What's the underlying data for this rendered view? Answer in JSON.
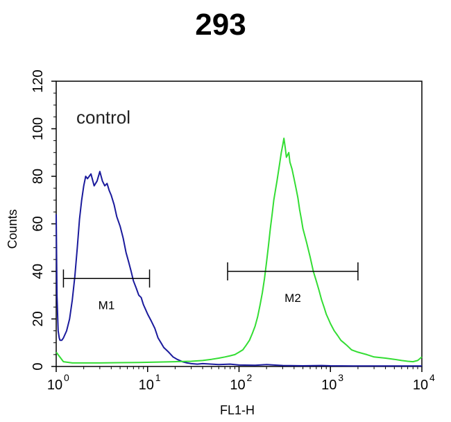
{
  "chart_data": {
    "type": "line",
    "title": "293",
    "xlabel": "FL1-H",
    "ylabel": "Counts",
    "x_scale": "log",
    "xlim": [
      1,
      10000
    ],
    "ylim": [
      0,
      120
    ],
    "x_ticks": [
      {
        "base": "10",
        "exp": "0",
        "value": 1
      },
      {
        "base": "10",
        "exp": "1",
        "value": 10
      },
      {
        "base": "10",
        "exp": "2",
        "value": 100
      },
      {
        "base": "10",
        "exp": "3",
        "value": 1000
      },
      {
        "base": "10",
        "exp": "4",
        "value": 10000
      }
    ],
    "y_ticks": [
      "0",
      "20",
      "40",
      "60",
      "80",
      "100",
      "120"
    ],
    "grid": false,
    "annotation": "control",
    "series": [
      {
        "color": "#1a1a9c",
        "x": [
          1.0,
          1.02,
          1.05,
          1.08,
          1.1,
          1.15,
          1.2,
          1.3,
          1.4,
          1.5,
          1.6,
          1.7,
          1.8,
          1.9,
          2.0,
          2.1,
          2.2,
          2.4,
          2.6,
          2.8,
          3.0,
          3.2,
          3.4,
          3.6,
          3.8,
          4.0,
          4.3,
          4.6,
          5.0,
          5.4,
          5.8,
          6.2,
          6.6,
          7.0,
          7.5,
          8.0,
          8.5,
          9.0,
          9.5,
          10,
          11,
          12,
          13,
          14,
          15,
          17,
          19,
          21,
          24,
          27,
          30,
          35,
          40,
          50,
          60,
          80,
          100,
          150,
          200,
          300,
          500,
          800,
          1000,
          2000,
          5000,
          10000
        ],
        "y": [
          64,
          30,
          15,
          12,
          11,
          11,
          12,
          15,
          20,
          28,
          38,
          50,
          62,
          70,
          76,
          80,
          79,
          81,
          76,
          78,
          82,
          78,
          76,
          77,
          74,
          72,
          68,
          63,
          59,
          54,
          48,
          44,
          40,
          36,
          33,
          30,
          29,
          26,
          24,
          22,
          19,
          16,
          12,
          10,
          8,
          6,
          4,
          3,
          2,
          1.5,
          1.2,
          1.0,
          1.2,
          1.0,
          0.8,
          1.0,
          0.6,
          0.5,
          0.8,
          0.4,
          0.3,
          0.4,
          0.3,
          0.2,
          0.2,
          0.2
        ]
      },
      {
        "color": "#33dd33",
        "x": [
          1.0,
          1.2,
          1.5,
          2.0,
          3.0,
          5.0,
          8.0,
          12,
          20,
          30,
          40,
          50,
          60,
          70,
          80,
          90,
          100,
          110,
          120,
          130,
          140,
          150,
          160,
          170,
          180,
          190,
          200,
          210,
          220,
          230,
          240,
          250,
          260,
          270,
          280,
          290,
          300,
          310,
          320,
          330,
          340,
          350,
          360,
          380,
          400,
          420,
          440,
          460,
          480,
          500,
          550,
          600,
          650,
          700,
          750,
          800,
          850,
          900,
          950,
          1000,
          1100,
          1200,
          1300,
          1400,
          1500,
          1700,
          2000,
          2500,
          3000,
          4000,
          5000,
          6000,
          7000,
          8000,
          9000,
          10000
        ],
        "y": [
          6,
          2,
          1.5,
          1.5,
          1.5,
          1.6,
          1.7,
          1.8,
          2.0,
          2.2,
          2.5,
          3.0,
          3.5,
          4.0,
          4.5,
          5.0,
          6,
          7,
          9,
          11,
          14,
          17,
          21,
          26,
          31,
          37,
          44,
          51,
          58,
          64,
          70,
          74,
          78,
          82,
          86,
          90,
          93,
          96,
          92,
          88,
          89,
          90,
          86,
          83,
          79,
          75,
          71,
          66,
          62,
          58,
          52,
          46,
          40,
          36,
          32,
          28,
          25,
          22,
          20,
          18,
          15,
          13,
          11,
          10,
          9,
          7,
          6,
          5,
          4,
          3.5,
          3,
          2.5,
          2.2,
          2.0,
          2.5,
          4
        ]
      }
    ],
    "markers": [
      {
        "label": "M1",
        "x_start": 1.2,
        "x_end": 10.5,
        "y": 37
      },
      {
        "label": "M2",
        "x_start": 75,
        "x_end": 2000,
        "y": 40
      }
    ]
  }
}
